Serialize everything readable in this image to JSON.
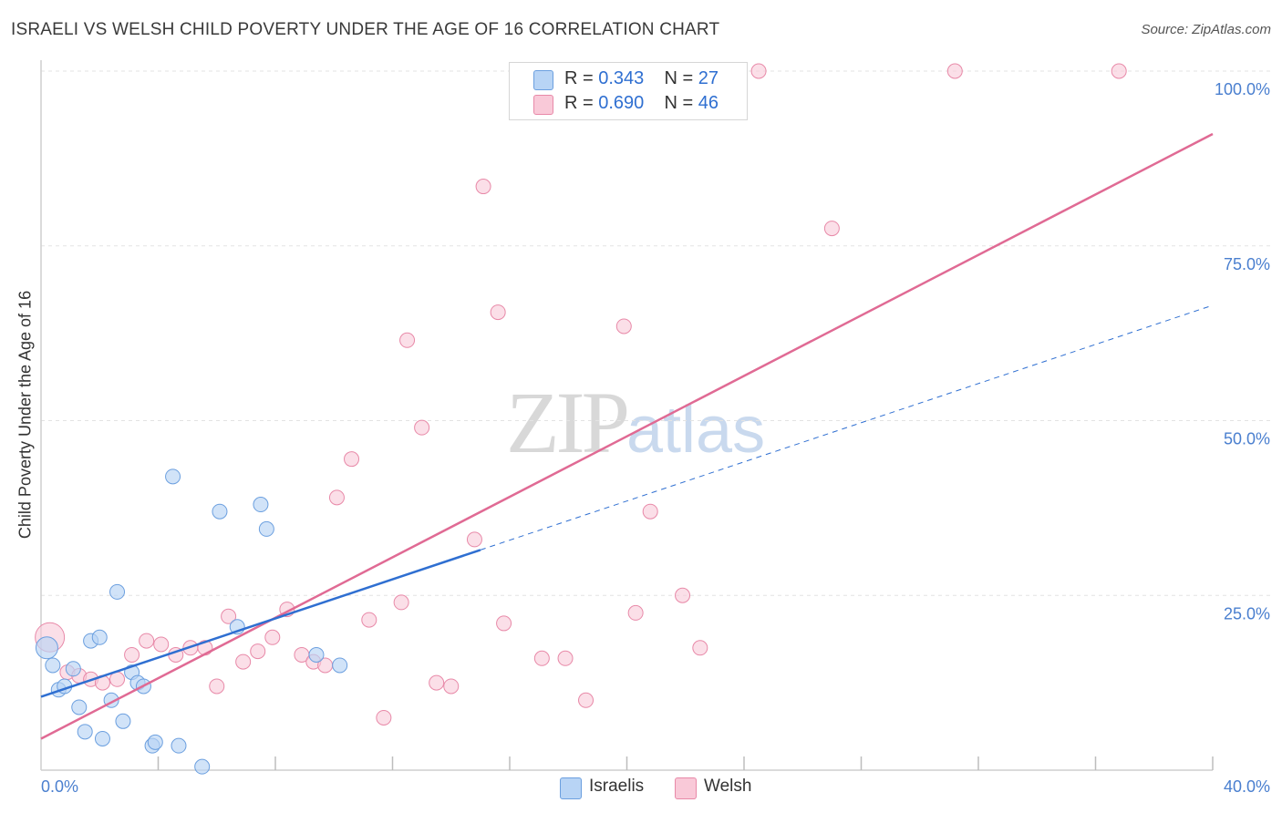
{
  "title": "ISRAELI VS WELSH CHILD POVERTY UNDER THE AGE OF 16 CORRELATION CHART",
  "source": "Source: ZipAtlas.com",
  "watermark": {
    "zip": "ZIP",
    "atlas": "atlas"
  },
  "legend_top": [
    {
      "r_label": "R = ",
      "r_value": "0.343",
      "n_label": "N = ",
      "n_value": "27"
    },
    {
      "r_label": "R = ",
      "r_value": "0.690",
      "n_label": "N = ",
      "n_value": "46"
    }
  ],
  "legend_bottom": [
    "Israelis",
    "Welsh"
  ],
  "colors": {
    "israelis_fill": "#b8d4f5",
    "israelis_stroke": "#6b9fdf",
    "israelis_line": "#2f6fd1",
    "welsh_fill": "#f9c9d8",
    "welsh_stroke": "#e889a8",
    "welsh_line": "#e06a94",
    "tick_label": "#4a7fcf"
  },
  "chart_data": {
    "type": "scatter",
    "title": "ISRAELI VS WELSH CHILD POVERTY UNDER THE AGE OF 16 CORRELATION CHART",
    "xlabel": "",
    "ylabel": "Child Poverty Under the Age of 16",
    "xlim": [
      0,
      40
    ],
    "ylim": [
      0,
      100
    ],
    "x_tick_labels": [
      "0.0%",
      "40.0%"
    ],
    "y_ticks": [
      25,
      50,
      75,
      100
    ],
    "y_tick_labels": [
      "25.0%",
      "50.0%",
      "75.0%",
      "100.0%"
    ],
    "grid": true,
    "legend_position": "top-center",
    "series": [
      {
        "name": "Israelis",
        "r": 0.343,
        "n": 27,
        "points": [
          [
            0.2,
            17.5
          ],
          [
            0.4,
            15.0
          ],
          [
            0.6,
            11.5
          ],
          [
            0.8,
            12.0
          ],
          [
            1.1,
            14.5
          ],
          [
            1.3,
            9.0
          ],
          [
            1.5,
            5.5
          ],
          [
            1.7,
            18.5
          ],
          [
            2.0,
            19.0
          ],
          [
            2.1,
            4.5
          ],
          [
            2.4,
            10.0
          ],
          [
            2.6,
            25.5
          ],
          [
            2.8,
            7.0
          ],
          [
            3.1,
            14.0
          ],
          [
            3.3,
            12.5
          ],
          [
            3.5,
            12.0
          ],
          [
            3.8,
            3.5
          ],
          [
            3.9,
            4.0
          ],
          [
            4.5,
            42.0
          ],
          [
            4.7,
            3.5
          ],
          [
            5.5,
            0.5
          ],
          [
            6.1,
            37.0
          ],
          [
            6.7,
            20.5
          ],
          [
            7.5,
            38.0
          ],
          [
            7.7,
            34.5
          ],
          [
            9.4,
            16.5
          ],
          [
            10.2,
            15.0
          ]
        ],
        "trend": {
          "x": [
            0,
            15
          ],
          "y": [
            10.5,
            31.5
          ]
        },
        "trend_ext": {
          "x": [
            15,
            40
          ],
          "y": [
            31.5,
            66.5
          ]
        }
      },
      {
        "name": "Welsh",
        "r": 0.69,
        "n": 46,
        "points": [
          [
            0.3,
            19.0
          ],
          [
            0.9,
            14.0
          ],
          [
            1.3,
            13.5
          ],
          [
            1.7,
            13.0
          ],
          [
            2.1,
            12.5
          ],
          [
            2.6,
            13.0
          ],
          [
            3.1,
            16.5
          ],
          [
            3.6,
            18.5
          ],
          [
            4.1,
            18.0
          ],
          [
            4.6,
            16.5
          ],
          [
            5.1,
            17.5
          ],
          [
            5.6,
            17.5
          ],
          [
            6.0,
            12.0
          ],
          [
            6.4,
            22.0
          ],
          [
            6.9,
            15.5
          ],
          [
            7.4,
            17.0
          ],
          [
            7.9,
            19.0
          ],
          [
            8.4,
            23.0
          ],
          [
            8.9,
            16.5
          ],
          [
            9.3,
            15.5
          ],
          [
            9.7,
            15.0
          ],
          [
            10.1,
            39.0
          ],
          [
            10.6,
            44.5
          ],
          [
            11.2,
            21.5
          ],
          [
            11.7,
            7.5
          ],
          [
            12.3,
            24.0
          ],
          [
            12.5,
            61.5
          ],
          [
            13.0,
            49.0
          ],
          [
            13.5,
            12.5
          ],
          [
            14.0,
            12.0
          ],
          [
            14.8,
            33.0
          ],
          [
            15.1,
            83.5
          ],
          [
            15.6,
            65.5
          ],
          [
            15.8,
            21.0
          ],
          [
            17.1,
            16.0
          ],
          [
            17.9,
            16.0
          ],
          [
            18.6,
            10.0
          ],
          [
            19.9,
            63.5
          ],
          [
            20.3,
            22.5
          ],
          [
            20.8,
            37.0
          ],
          [
            21.9,
            25.0
          ],
          [
            22.5,
            17.5
          ],
          [
            24.5,
            100.0
          ],
          [
            27.0,
            77.5
          ],
          [
            31.2,
            100.0
          ],
          [
            36.8,
            100.0
          ]
        ],
        "trend": {
          "x": [
            0,
            40
          ],
          "y": [
            4.5,
            91.0
          ]
        }
      }
    ]
  }
}
